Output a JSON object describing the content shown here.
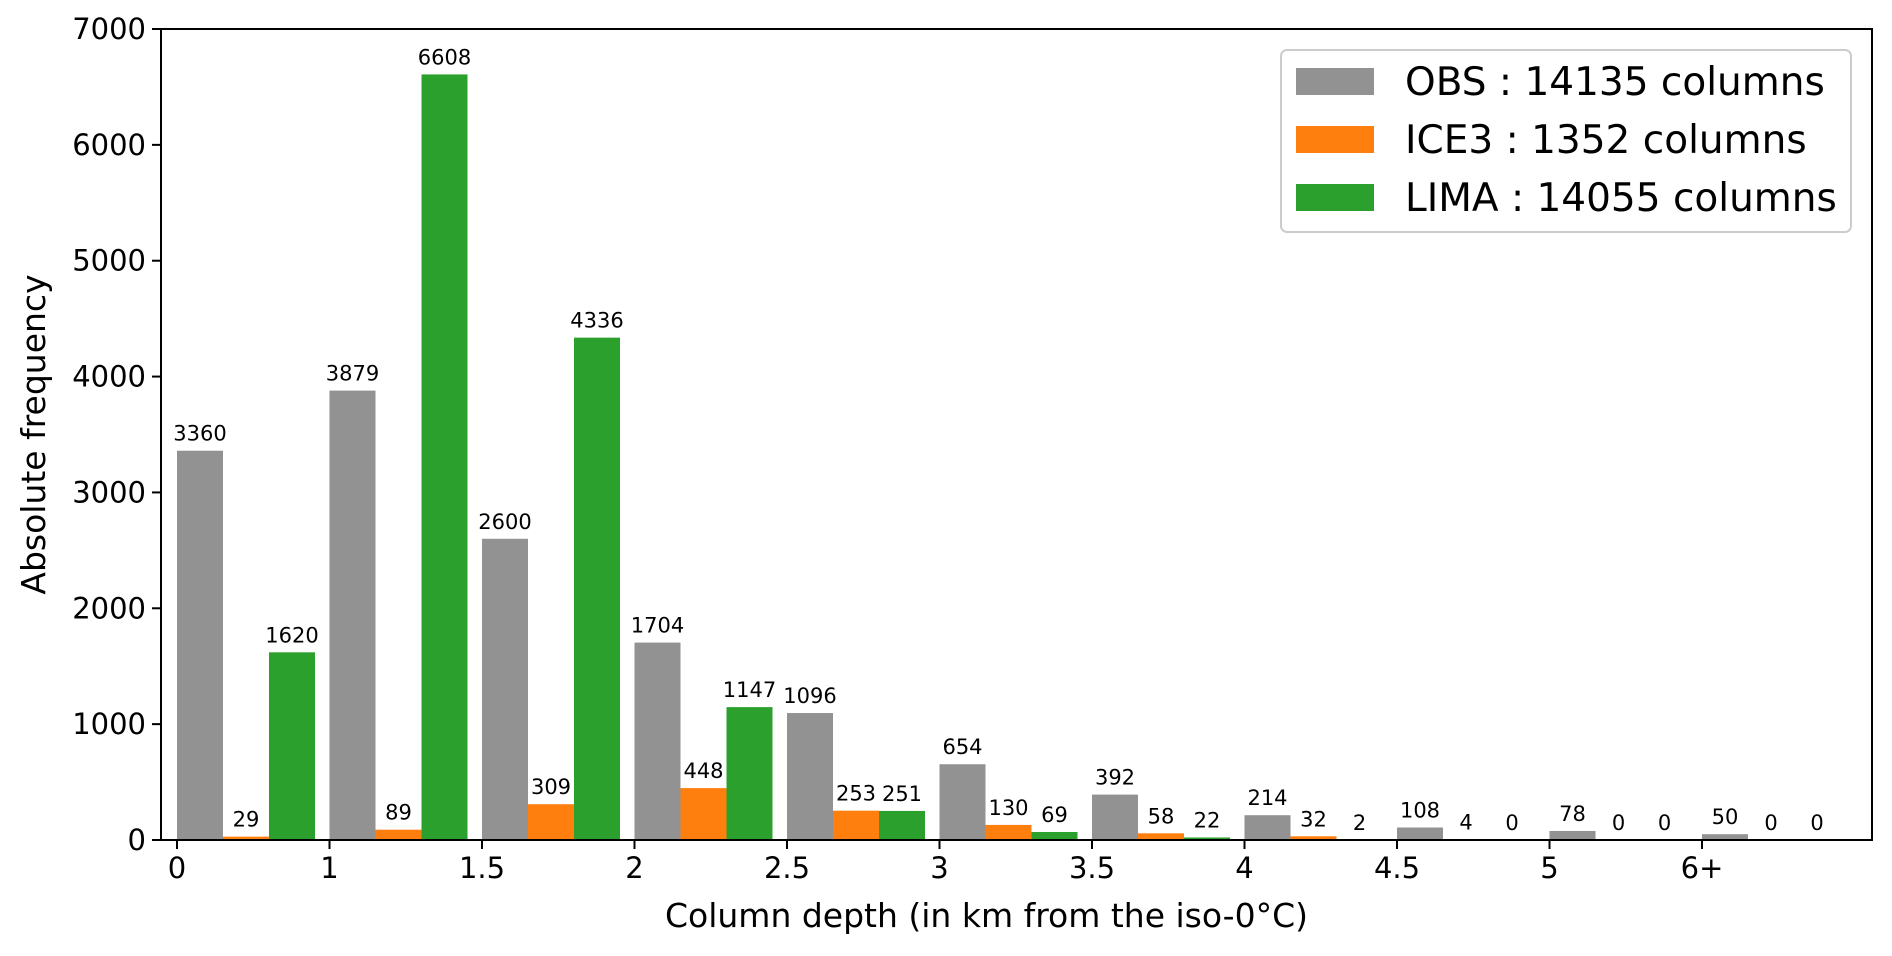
{
  "chart_data": {
    "type": "bar",
    "xlabel": "Column depth (in km from the iso-0°C)",
    "ylabel": "Absolute frequency",
    "ylim": [
      0,
      7000
    ],
    "yticks": [
      0,
      1000,
      2000,
      3000,
      4000,
      5000,
      6000,
      7000
    ],
    "categories": [
      "0",
      "1",
      "1.5",
      "2",
      "2.5",
      "3",
      "3.5",
      "4",
      "4.5",
      "5",
      "6+"
    ],
    "series": [
      {
        "name": "OBS",
        "color": "#929292",
        "values": [
          3360,
          3879,
          2600,
          1704,
          1096,
          654,
          392,
          214,
          108,
          78,
          50
        ]
      },
      {
        "name": "ICE3",
        "color": "#ff7f0e",
        "values": [
          29,
          89,
          309,
          448,
          253,
          130,
          58,
          32,
          4,
          0,
          0
        ]
      },
      {
        "name": "LIMA",
        "color": "#2ca02c",
        "values": [
          1620,
          6608,
          4336,
          1147,
          251,
          69,
          22,
          2,
          0,
          0,
          0
        ]
      }
    ],
    "legend": {
      "position": "top-right",
      "entries": [
        {
          "series": "OBS",
          "text": "OBS : 14135 columns"
        },
        {
          "series": "ICE3",
          "text": "ICE3 : 1352 columns"
        },
        {
          "series": "LIMA",
          "text": "LIMA : 14055 columns"
        }
      ]
    },
    "grid": false
  }
}
